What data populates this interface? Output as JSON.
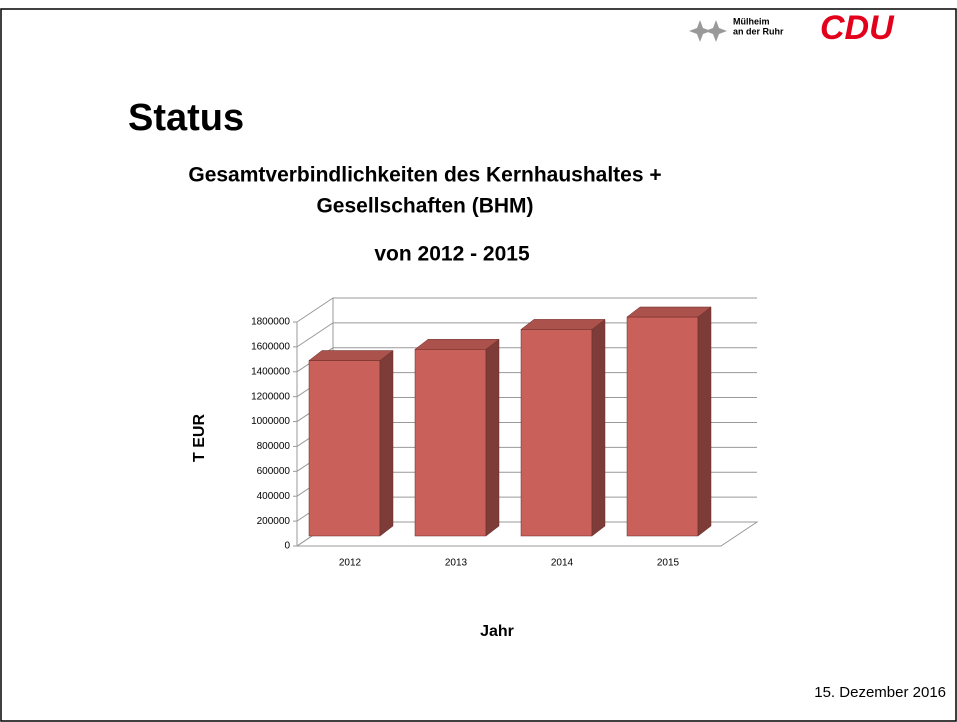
{
  "slide": {
    "heading": "Status",
    "date": "15. Dezember 2016",
    "logo": {
      "city": [
        "Mülheim",
        "an der Ruhr"
      ],
      "party": "CDU"
    }
  },
  "chart_data": {
    "type": "bar3d",
    "title": [
      "Gesamtverbindlichkeiten des Kernhaushaltes +",
      "Gesellschaften (BHM)"
    ],
    "subtitle": "von 2012 - 2015",
    "x_label": "Jahr",
    "y_label": "T EUR",
    "categories": [
      "2012",
      "2013",
      "2014",
      "2015"
    ],
    "values": [
      1410000,
      1500000,
      1660000,
      1760000
    ],
    "color": "#c9605a",
    "ylim": [
      0,
      1800000
    ],
    "yticks": [
      0,
      200000,
      400000,
      600000,
      800000,
      1000000,
      1200000,
      1400000,
      1600000,
      1800000
    ],
    "grid": true
  }
}
